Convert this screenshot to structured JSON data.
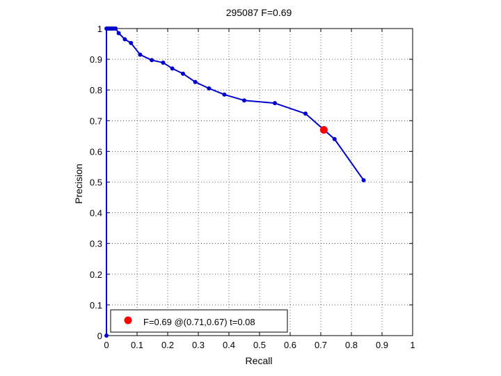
{
  "chart_data": {
    "type": "line",
    "title": "295087 F=0.69",
    "xlabel": "Recall",
    "ylabel": "Precision",
    "xlim": [
      0,
      1
    ],
    "ylim": [
      0,
      1
    ],
    "xticks": [
      0,
      0.1,
      0.2,
      0.3,
      0.4,
      0.5,
      0.6,
      0.7,
      0.8,
      0.9,
      1
    ],
    "yticks": [
      0,
      0.1,
      0.2,
      0.3,
      0.4,
      0.5,
      0.6,
      0.7,
      0.8,
      0.9,
      1
    ],
    "xtick_labels": [
      "0",
      "0.1",
      "0.2",
      "0.3",
      "0.4",
      "0.5",
      "0.6",
      "0.7",
      "0.8",
      "0.9",
      "1"
    ],
    "ytick_labels": [
      "0",
      "0.1",
      "0.2",
      "0.3",
      "0.4",
      "0.5",
      "0.6",
      "0.7",
      "0.8",
      "0.9",
      "1"
    ],
    "grid": true,
    "grid_style": "dotted",
    "series": [
      {
        "color": "#0000cc",
        "marker": "dot",
        "points": [
          {
            "x": 0.0,
            "y": 0.0
          },
          {
            "x": 0.0,
            "y": 1.0
          },
          {
            "x": 0.004,
            "y": 1.0
          },
          {
            "x": 0.008,
            "y": 1.0
          },
          {
            "x": 0.012,
            "y": 1.0
          },
          {
            "x": 0.016,
            "y": 1.0
          },
          {
            "x": 0.02,
            "y": 1.0
          },
          {
            "x": 0.025,
            "y": 1.0
          },
          {
            "x": 0.03,
            "y": 1.0
          },
          {
            "x": 0.04,
            "y": 0.985
          },
          {
            "x": 0.06,
            "y": 0.965
          },
          {
            "x": 0.08,
            "y": 0.953
          },
          {
            "x": 0.11,
            "y": 0.915
          },
          {
            "x": 0.148,
            "y": 0.897
          },
          {
            "x": 0.185,
            "y": 0.889
          },
          {
            "x": 0.215,
            "y": 0.87
          },
          {
            "x": 0.25,
            "y": 0.853
          },
          {
            "x": 0.29,
            "y": 0.826
          },
          {
            "x": 0.335,
            "y": 0.805
          },
          {
            "x": 0.385,
            "y": 0.785
          },
          {
            "x": 0.45,
            "y": 0.766
          },
          {
            "x": 0.55,
            "y": 0.757
          },
          {
            "x": 0.65,
            "y": 0.723
          },
          {
            "x": 0.745,
            "y": 0.64
          },
          {
            "x": 0.84,
            "y": 0.506
          }
        ]
      }
    ],
    "highlight": {
      "x": 0.71,
      "y": 0.67,
      "color": "#ff0000",
      "label": "F=0.69 @(0.71,0.67) t=0.08"
    },
    "legend": {
      "position": "bottom-left",
      "entry": "F=0.69 @(0.71,0.67) t=0.08"
    }
  }
}
